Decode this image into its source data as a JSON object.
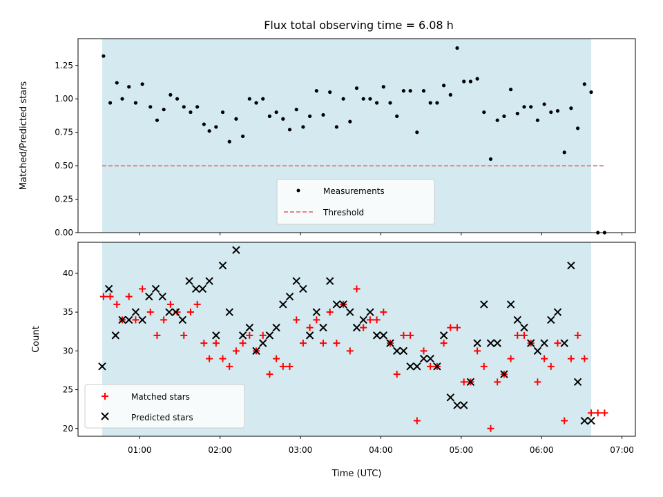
{
  "chart_data": [
    {
      "type": "scatter",
      "title": "Flux total observing time = 6.08 h",
      "xlabel": "",
      "ylabel": "Matched/Predicted stars",
      "xlim": [
        "00:14",
        "07:10"
      ],
      "ylim": [
        0.0,
        1.45
      ],
      "yticks": [
        0.0,
        0.25,
        0.5,
        0.75,
        1.0,
        1.25
      ],
      "ytick_labels": [
        "0.00",
        "0.25",
        "0.50",
        "0.75",
        "1.00",
        "1.25"
      ],
      "observing_window": [
        "00:32",
        "06:37"
      ],
      "legend_placement": "lower center",
      "colors": {
        "window": "#d4eaf0",
        "measurements": "#000000",
        "threshold": "#f08080"
      },
      "series": [
        {
          "name": "Measurements",
          "style": "dot",
          "x": [
            "00:33",
            "00:38",
            "00:43",
            "00:47",
            "00:52",
            "00:57",
            "01:02",
            "01:08",
            "01:13",
            "01:18",
            "01:23",
            "01:28",
            "01:33",
            "01:38",
            "01:43",
            "01:48",
            "01:52",
            "01:57",
            "02:02",
            "02:07",
            "02:12",
            "02:17",
            "02:22",
            "02:27",
            "02:32",
            "02:37",
            "02:42",
            "02:47",
            "02:52",
            "02:57",
            "03:02",
            "03:07",
            "03:12",
            "03:17",
            "03:22",
            "03:27",
            "03:32",
            "03:37",
            "03:42",
            "03:47",
            "03:52",
            "03:57",
            "04:02",
            "04:07",
            "04:12",
            "04:17",
            "04:22",
            "04:27",
            "04:32",
            "04:37",
            "04:42",
            "04:47",
            "04:52",
            "04:57",
            "05:02",
            "05:07",
            "05:12",
            "05:17",
            "05:22",
            "05:27",
            "05:32",
            "05:37",
            "05:42",
            "05:47",
            "05:52",
            "05:57",
            "06:02",
            "06:07",
            "06:12",
            "06:17",
            "06:22",
            "06:27",
            "06:32",
            "06:37",
            "06:42",
            "06:47"
          ],
          "y": [
            1.32,
            0.97,
            1.12,
            1.0,
            1.09,
            0.97,
            1.11,
            0.94,
            0.84,
            0.92,
            1.03,
            1.0,
            0.94,
            0.9,
            0.94,
            0.81,
            0.76,
            0.79,
            0.9,
            0.68,
            0.85,
            0.72,
            1.0,
            0.97,
            1.0,
            0.87,
            0.9,
            0.85,
            0.77,
            0.92,
            0.79,
            0.87,
            1.06,
            0.88,
            1.05,
            0.79,
            1.0,
            0.83,
            1.08,
            1.0,
            1.0,
            0.97,
            1.09,
            0.97,
            0.87,
            1.06,
            1.06,
            0.75,
            1.06,
            0.97,
            0.97,
            1.1,
            1.03,
            1.38,
            1.13,
            1.13,
            1.15,
            0.9,
            0.55,
            0.84,
            0.87,
            1.07,
            0.89,
            0.94,
            0.94,
            0.84,
            0.96,
            0.9,
            0.91,
            0.6,
            0.93,
            0.78,
            1.11,
            1.05,
            0.0,
            0.0
          ]
        },
        {
          "name": "Threshold",
          "style": "dashed-line",
          "x": [
            "00:32",
            "06:47"
          ],
          "y": [
            0.5,
            0.5
          ]
        }
      ]
    },
    {
      "type": "scatter",
      "title": "",
      "xlabel": "Time (UTC)",
      "ylabel": "Count",
      "xlim": [
        "00:14",
        "07:10"
      ],
      "ylim": [
        19,
        44
      ],
      "yticks": [
        20,
        25,
        30,
        35,
        40
      ],
      "ytick_labels": [
        "20",
        "25",
        "30",
        "35",
        "40"
      ],
      "xticks": [
        "01:00",
        "02:00",
        "03:00",
        "04:00",
        "05:00",
        "06:00",
        "07:00"
      ],
      "xtick_labels": [
        "01:00",
        "02:00",
        "03:00",
        "04:00",
        "05:00",
        "06:00",
        "07:00"
      ],
      "observing_window": [
        "00:32",
        "06:37"
      ],
      "legend_placement": "lower left",
      "colors": {
        "window": "#d4eaf0",
        "matched": "#ff0000",
        "predicted": "#000000"
      },
      "series": [
        {
          "name": "Matched stars",
          "marker": "plus",
          "x": [
            "00:33",
            "00:38",
            "00:43",
            "00:47",
            "00:52",
            "00:57",
            "01:02",
            "01:08",
            "01:13",
            "01:18",
            "01:23",
            "01:28",
            "01:33",
            "01:38",
            "01:43",
            "01:48",
            "01:52",
            "01:57",
            "02:02",
            "02:07",
            "02:12",
            "02:17",
            "02:22",
            "02:27",
            "02:32",
            "02:37",
            "02:42",
            "02:47",
            "02:52",
            "02:57",
            "03:02",
            "03:07",
            "03:12",
            "03:17",
            "03:22",
            "03:27",
            "03:32",
            "03:37",
            "03:42",
            "03:47",
            "03:52",
            "03:57",
            "04:02",
            "04:07",
            "04:12",
            "04:17",
            "04:22",
            "04:27",
            "04:32",
            "04:37",
            "04:42",
            "04:47",
            "04:52",
            "04:57",
            "05:02",
            "05:07",
            "05:12",
            "05:17",
            "05:22",
            "05:27",
            "05:32",
            "05:37",
            "05:42",
            "05:47",
            "05:52",
            "05:57",
            "06:02",
            "06:07",
            "06:12",
            "06:17",
            "06:22",
            "06:27",
            "06:32",
            "06:37",
            "06:42",
            "06:47"
          ],
          "y": [
            37,
            37,
            36,
            34,
            37,
            34,
            38,
            35,
            32,
            34,
            36,
            35,
            32,
            35,
            36,
            31,
            29,
            31,
            29,
            28,
            30,
            31,
            32,
            30,
            32,
            27,
            29,
            28,
            28,
            34,
            31,
            33,
            34,
            31,
            35,
            31,
            36,
            30,
            38,
            33,
            34,
            34,
            35,
            31,
            27,
            32,
            32,
            21,
            30,
            28,
            28,
            31,
            33,
            33,
            26,
            26,
            30,
            28,
            20,
            26,
            27,
            29,
            32,
            32,
            31,
            26,
            29,
            28,
            31,
            21,
            29,
            32,
            29,
            22,
            22,
            22
          ]
        },
        {
          "name": "Predicted stars",
          "marker": "x",
          "x": [
            "00:32",
            "00:37",
            "00:42",
            "00:47",
            "00:52",
            "00:57",
            "01:02",
            "01:07",
            "01:12",
            "01:17",
            "01:22",
            "01:27",
            "01:32",
            "01:37",
            "01:42",
            "01:47",
            "01:52",
            "01:57",
            "02:02",
            "02:07",
            "02:12",
            "02:17",
            "02:22",
            "02:27",
            "02:32",
            "02:37",
            "02:42",
            "02:47",
            "02:52",
            "02:57",
            "03:02",
            "03:07",
            "03:12",
            "03:17",
            "03:22",
            "03:27",
            "03:32",
            "03:37",
            "03:42",
            "03:47",
            "03:52",
            "03:57",
            "04:02",
            "04:07",
            "04:12",
            "04:17",
            "04:22",
            "04:27",
            "04:32",
            "04:37",
            "04:42",
            "04:47",
            "04:52",
            "04:57",
            "05:02",
            "05:07",
            "05:12",
            "05:17",
            "05:22",
            "05:27",
            "05:32",
            "05:37",
            "05:42",
            "05:47",
            "05:52",
            "05:57",
            "06:02",
            "06:07",
            "06:12",
            "06:17",
            "06:22",
            "06:27",
            "06:32",
            "06:37"
          ],
          "y": [
            28,
            38,
            32,
            34,
            34,
            35,
            34,
            37,
            38,
            37,
            35,
            35,
            34,
            39,
            38,
            38,
            39,
            32,
            41,
            35,
            43,
            32,
            33,
            30,
            31,
            32,
            33,
            36,
            37,
            39,
            38,
            32,
            35,
            33,
            39,
            36,
            36,
            35,
            33,
            34,
            35,
            32,
            32,
            31,
            30,
            30,
            28,
            28,
            29,
            29,
            28,
            32,
            24,
            23,
            23,
            26,
            31,
            36,
            31,
            31,
            27,
            36,
            34,
            33,
            31,
            30,
            31,
            34,
            35,
            31,
            41,
            26,
            21,
            21
          ]
        }
      ]
    }
  ]
}
